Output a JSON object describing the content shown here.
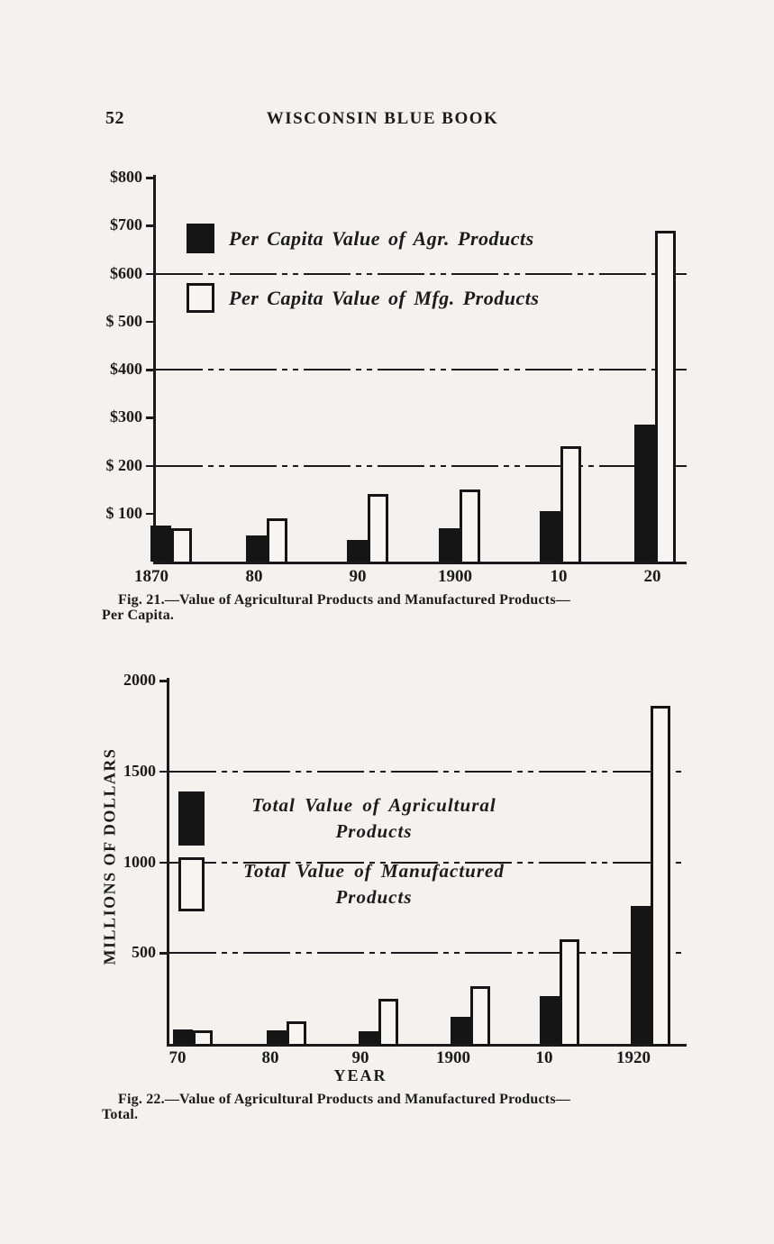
{
  "page": {
    "number": "52",
    "header_title": "WISCONSIN BLUE BOOK"
  },
  "fig21": {
    "caption_line1": "Fig. 21.—Value of Agricultural Products and Manufactured Products—",
    "caption_line2": "Per Capita."
  },
  "fig22": {
    "caption_line1": "Fig. 22.—Value of Agricultural Products and Manufactured Products—",
    "caption_line2": "Total."
  },
  "chart_data": [
    {
      "type": "bar",
      "title": "Value of Agricultural Products and Manufactured Products—Per Capita",
      "categories": [
        "1870",
        "80",
        "90",
        "1900",
        "10",
        "20"
      ],
      "series": [
        {
          "name": "Per Capita Value of Agr. Products",
          "color": "#151515",
          "values": [
            75,
            55,
            45,
            70,
            105,
            285
          ]
        },
        {
          "name": "Per Capita Value of Mfg. Products",
          "color": "#f6f5f1",
          "values": [
            70,
            90,
            140,
            150,
            240,
            690
          ]
        }
      ],
      "xlabel": "",
      "ylabel": "",
      "ylim": [
        0,
        800
      ],
      "yticks": [
        100,
        200,
        300,
        400,
        500,
        600,
        700,
        800
      ],
      "ytick_labels": [
        "$ 100",
        "$ 200",
        "$300",
        "$400",
        "$ 500",
        "$600",
        "$700",
        "$800"
      ],
      "gridlines_at": [
        200,
        400,
        600
      ],
      "grid_style": "dash-dot",
      "legend_position": "upper-left-inside"
    },
    {
      "type": "bar",
      "title": "Value of Agricultural Products and Manufactured Products—Total",
      "categories": [
        "70",
        "80",
        "90",
        "1900",
        "10",
        "1920"
      ],
      "series": [
        {
          "name": "Total Value of Agricultural Products",
          "color": "#151515",
          "values": [
            80,
            75,
            70,
            150,
            265,
            760
          ]
        },
        {
          "name": "Total Value of Manufactured Products",
          "color": "#f6f5f1",
          "values": [
            75,
            125,
            250,
            320,
            575,
            1860
          ]
        }
      ],
      "xlabel": "YEAR",
      "ylabel": "MILLIONS OF DOLLARS",
      "ylim": [
        0,
        2000
      ],
      "yticks": [
        500,
        1000,
        1500,
        2000
      ],
      "ytick_labels": [
        "500",
        "1000",
        "1500",
        "2000"
      ],
      "gridlines_at": [
        500,
        1000,
        1500
      ],
      "grid_style": "dash-dot",
      "legend_position": "center-left-inside"
    }
  ]
}
